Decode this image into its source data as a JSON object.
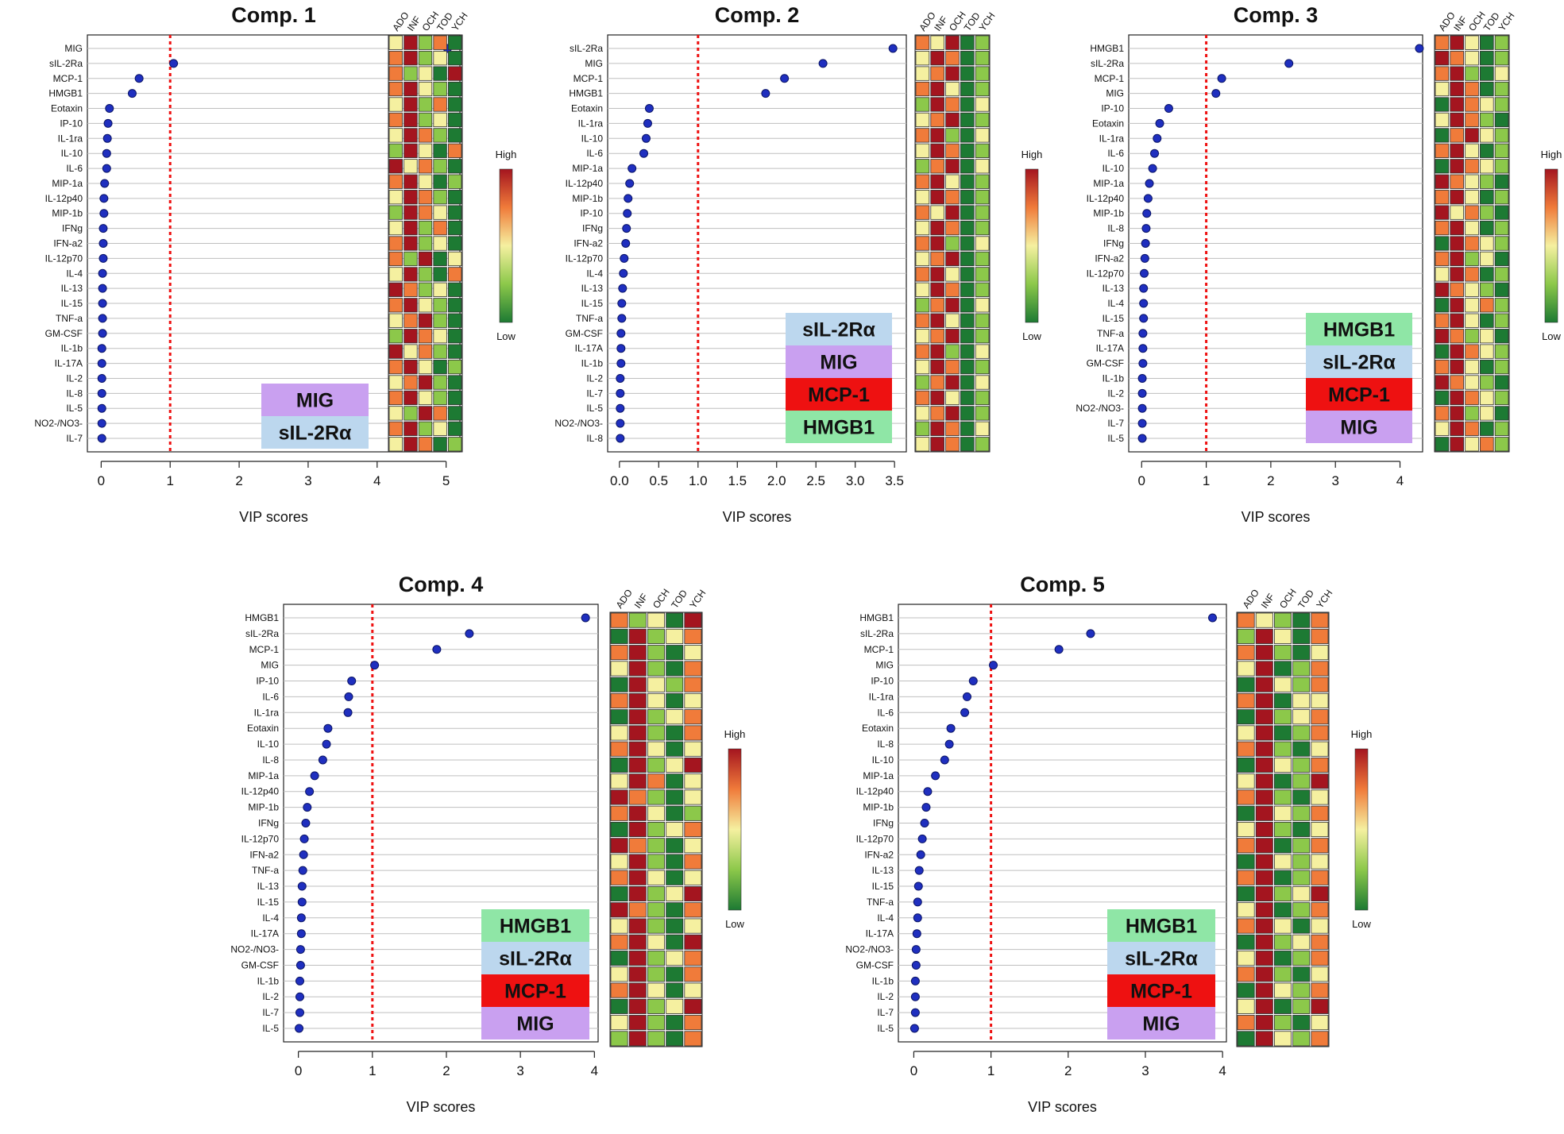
{
  "figure": {
    "xlabel": "VIP scores",
    "heatmap_columns": [
      "ADO",
      "INF",
      "OCH",
      "TOD",
      "YCH"
    ],
    "legend_high": "High",
    "legend_low": "Low",
    "threshold": 1,
    "colors": {
      "dot": "#1f2fbf",
      "threshold_line": "#ee1111",
      "grid": "#bfbfbf",
      "heat": [
        "#1d7a33",
        "#8cc84a",
        "#f5f0a0",
        "#f07b3a",
        "#a4151f"
      ],
      "badge": {
        "MIG": "#c9a0f0",
        "sIL-2Ra": "#bcd7ee",
        "MCP-1": "#ee1111",
        "HMGB1": "#8fe6a6"
      }
    }
  },
  "chart_data": [
    {
      "type": "scatter",
      "title": "Comp. 1",
      "xlabel": "VIP scores",
      "xlim": [
        -0.2,
        5.2
      ],
      "xticks": [
        "0",
        "1",
        "2",
        "3",
        "4",
        "5"
      ],
      "xtick_values": [
        0,
        1,
        2,
        3,
        4,
        5
      ],
      "threshold": 1,
      "labels": [
        "MIG",
        "sIL-2Ra",
        "MCP-1",
        "HMGB1",
        "Eotaxin",
        "IP-10",
        "IL-1ra",
        "IL-10",
        "IL-6",
        "MIP-1a",
        "IL-12p40",
        "MIP-1b",
        "IFNg",
        "IFN-a2",
        "IL-12p70",
        "IL-4",
        "IL-13",
        "IL-15",
        "TNF-a",
        "GM-CSF",
        "IL-1b",
        "IL-17A",
        "IL-2",
        "IL-8",
        "IL-5",
        "NO2-/NO3-",
        "IL-7"
      ],
      "values": [
        5.02,
        1.05,
        0.55,
        0.45,
        0.12,
        0.1,
        0.09,
        0.08,
        0.08,
        0.05,
        0.04,
        0.04,
        0.03,
        0.03,
        0.03,
        0.02,
        0.02,
        0.02,
        0.02,
        0.02,
        0.01,
        0.01,
        0.01,
        0.01,
        0.01,
        0.01,
        0.01
      ],
      "heatmap": [
        [
          2,
          4,
          1,
          3,
          0
        ],
        [
          3,
          4,
          1,
          2,
          0
        ],
        [
          3,
          1,
          2,
          0,
          4
        ],
        [
          3,
          4,
          2,
          1,
          0
        ],
        [
          2,
          4,
          1,
          3,
          0
        ],
        [
          3,
          4,
          1,
          2,
          0
        ],
        [
          2,
          4,
          3,
          1,
          0
        ],
        [
          1,
          4,
          2,
          0,
          3
        ],
        [
          4,
          2,
          3,
          1,
          0
        ],
        [
          3,
          4,
          2,
          0,
          1
        ],
        [
          2,
          4,
          3,
          1,
          0
        ],
        [
          1,
          4,
          3,
          2,
          0
        ],
        [
          2,
          4,
          1,
          3,
          0
        ],
        [
          3,
          4,
          1,
          2,
          0
        ],
        [
          3,
          1,
          4,
          0,
          2
        ],
        [
          2,
          4,
          1,
          0,
          3
        ],
        [
          4,
          3,
          1,
          2,
          0
        ],
        [
          3,
          4,
          2,
          1,
          0
        ],
        [
          2,
          3,
          4,
          1,
          0
        ],
        [
          1,
          4,
          3,
          2,
          0
        ],
        [
          4,
          2,
          3,
          1,
          0
        ],
        [
          3,
          4,
          2,
          0,
          1
        ],
        [
          2,
          3,
          4,
          1,
          0
        ],
        [
          3,
          4,
          2,
          1,
          0
        ],
        [
          2,
          1,
          4,
          3,
          0
        ],
        [
          3,
          4,
          1,
          2,
          0
        ],
        [
          2,
          4,
          3,
          0,
          1
        ]
      ],
      "badges": [
        "MIG",
        "sIL-2Rα"
      ]
    },
    {
      "type": "scatter",
      "title": "Comp. 2",
      "xlabel": "VIP scores",
      "xlim": [
        -0.15,
        3.65
      ],
      "xticks": [
        "0.0",
        "0.5",
        "1.0",
        "1.5",
        "2.0",
        "2.5",
        "3.0",
        "3.5"
      ],
      "xtick_values": [
        0,
        0.5,
        1,
        1.5,
        2,
        2.5,
        3,
        3.5
      ],
      "threshold": 1,
      "labels": [
        "sIL-2Ra",
        "MIG",
        "MCP-1",
        "HMGB1",
        "Eotaxin",
        "IL-1ra",
        "IL-10",
        "IL-6",
        "MIP-1a",
        "IL-12p40",
        "MIP-1b",
        "IP-10",
        "IFNg",
        "IFN-a2",
        "IL-12p70",
        "IL-4",
        "IL-13",
        "IL-15",
        "TNF-a",
        "GM-CSF",
        "IL-17A",
        "IL-1b",
        "IL-2",
        "IL-7",
        "IL-5",
        "NO2-/NO3-",
        "IL-8"
      ],
      "values": [
        3.48,
        2.59,
        2.1,
        1.86,
        0.38,
        0.36,
        0.34,
        0.31,
        0.16,
        0.13,
        0.11,
        0.1,
        0.09,
        0.08,
        0.06,
        0.05,
        0.04,
        0.03,
        0.03,
        0.02,
        0.02,
        0.02,
        0.01,
        0.01,
        0.01,
        0.01,
        0.01
      ],
      "heatmap": [
        [
          3,
          2,
          4,
          0,
          1
        ],
        [
          2,
          4,
          3,
          0,
          1
        ],
        [
          2,
          3,
          4,
          0,
          1
        ],
        [
          3,
          4,
          2,
          0,
          1
        ],
        [
          1,
          4,
          3,
          0,
          2
        ],
        [
          2,
          3,
          4,
          0,
          1
        ],
        [
          3,
          4,
          1,
          0,
          2
        ],
        [
          2,
          4,
          3,
          0,
          1
        ],
        [
          1,
          3,
          4,
          0,
          2
        ],
        [
          3,
          4,
          2,
          0,
          1
        ],
        [
          2,
          4,
          3,
          0,
          1
        ],
        [
          3,
          2,
          4,
          0,
          1
        ],
        [
          2,
          4,
          3,
          0,
          1
        ],
        [
          3,
          4,
          1,
          0,
          2
        ],
        [
          2,
          3,
          4,
          0,
          1
        ],
        [
          3,
          4,
          2,
          0,
          1
        ],
        [
          2,
          4,
          3,
          0,
          1
        ],
        [
          1,
          3,
          4,
          0,
          2
        ],
        [
          3,
          4,
          2,
          0,
          1
        ],
        [
          2,
          3,
          4,
          0,
          1
        ],
        [
          3,
          4,
          1,
          0,
          2
        ],
        [
          2,
          4,
          3,
          0,
          1
        ],
        [
          1,
          3,
          4,
          0,
          2
        ],
        [
          3,
          4,
          2,
          0,
          1
        ],
        [
          2,
          3,
          4,
          0,
          1
        ],
        [
          1,
          4,
          3,
          0,
          2
        ],
        [
          2,
          4,
          3,
          0,
          1
        ]
      ],
      "badges": [
        "sIL-2Rα",
        "MIG",
        "MCP-1",
        "HMGB1"
      ]
    },
    {
      "type": "scatter",
      "title": "Comp. 3",
      "xlabel": "VIP scores",
      "xlim": [
        -0.2,
        4.35
      ],
      "xticks": [
        "0",
        "1",
        "2",
        "3",
        "4"
      ],
      "xtick_values": [
        0,
        1,
        2,
        3,
        4
      ],
      "threshold": 1,
      "labels": [
        "HMGB1",
        "sIL-2Ra",
        "MCP-1",
        "MIG",
        "IP-10",
        "Eotaxin",
        "IL-1ra",
        "IL-6",
        "IL-10",
        "MIP-1a",
        "IL-12p40",
        "MIP-1b",
        "IL-8",
        "IFNg",
        "IFN-a2",
        "IL-12p70",
        "IL-13",
        "IL-4",
        "IL-15",
        "TNF-a",
        "IL-17A",
        "GM-CSF",
        "IL-1b",
        "IL-2",
        "NO2-/NO3-",
        "IL-7",
        "IL-5"
      ],
      "values": [
        4.3,
        2.28,
        1.24,
        1.15,
        0.42,
        0.28,
        0.24,
        0.2,
        0.17,
        0.12,
        0.1,
        0.08,
        0.07,
        0.06,
        0.05,
        0.04,
        0.03,
        0.03,
        0.03,
        0.02,
        0.02,
        0.02,
        0.01,
        0.01,
        0.01,
        0.01,
        0.01
      ],
      "heatmap": [
        [
          3,
          4,
          2,
          0,
          1
        ],
        [
          4,
          3,
          2,
          0,
          1
        ],
        [
          3,
          4,
          1,
          0,
          2
        ],
        [
          2,
          4,
          3,
          0,
          1
        ],
        [
          0,
          4,
          3,
          2,
          1
        ],
        [
          2,
          4,
          3,
          1,
          0
        ],
        [
          0,
          3,
          4,
          2,
          1
        ],
        [
          3,
          4,
          2,
          0,
          1
        ],
        [
          0,
          4,
          3,
          2,
          1
        ],
        [
          4,
          3,
          2,
          1,
          0
        ],
        [
          3,
          4,
          2,
          0,
          1
        ],
        [
          4,
          2,
          3,
          1,
          0
        ],
        [
          3,
          4,
          2,
          0,
          1
        ],
        [
          0,
          4,
          3,
          2,
          1
        ],
        [
          3,
          4,
          1,
          2,
          0
        ],
        [
          2,
          4,
          3,
          0,
          1
        ],
        [
          4,
          3,
          2,
          1,
          0
        ],
        [
          0,
          4,
          2,
          3,
          1
        ],
        [
          3,
          4,
          2,
          0,
          1
        ],
        [
          4,
          3,
          1,
          2,
          0
        ],
        [
          0,
          4,
          3,
          2,
          1
        ],
        [
          3,
          4,
          2,
          0,
          1
        ],
        [
          4,
          3,
          2,
          1,
          0
        ],
        [
          0,
          4,
          3,
          2,
          1
        ],
        [
          3,
          4,
          1,
          2,
          0
        ],
        [
          2,
          4,
          3,
          0,
          1
        ],
        [
          0,
          4,
          2,
          3,
          1
        ]
      ],
      "badges": [
        "HMGB1",
        "sIL-2Rα",
        "MCP-1",
        "MIG"
      ]
    },
    {
      "type": "scatter",
      "title": "Comp. 4",
      "xlabel": "VIP scores",
      "xlim": [
        -0.2,
        4.05
      ],
      "xticks": [
        "0",
        "1",
        "2",
        "3",
        "4"
      ],
      "xtick_values": [
        0,
        1,
        2,
        3,
        4
      ],
      "threshold": 1,
      "labels": [
        "HMGB1",
        "sIL-2Ra",
        "MCP-1",
        "MIG",
        "IP-10",
        "IL-6",
        "IL-1ra",
        "Eotaxin",
        "IL-10",
        "IL-8",
        "MIP-1a",
        "IL-12p40",
        "MIP-1b",
        "IFNg",
        "IL-12p70",
        "IFN-a2",
        "TNF-a",
        "IL-13",
        "IL-15",
        "IL-4",
        "IL-17A",
        "NO2-/NO3-",
        "GM-CSF",
        "IL-1b",
        "IL-2",
        "IL-7",
        "IL-5"
      ],
      "values": [
        3.88,
        2.31,
        1.87,
        1.03,
        0.72,
        0.68,
        0.67,
        0.4,
        0.38,
        0.33,
        0.22,
        0.15,
        0.12,
        0.1,
        0.08,
        0.07,
        0.06,
        0.05,
        0.05,
        0.04,
        0.04,
        0.03,
        0.03,
        0.02,
        0.02,
        0.02,
        0.01
      ],
      "heatmap": [
        [
          3,
          1,
          2,
          0,
          4
        ],
        [
          0,
          4,
          1,
          2,
          3
        ],
        [
          3,
          4,
          1,
          0,
          2
        ],
        [
          2,
          4,
          1,
          0,
          3
        ],
        [
          0,
          4,
          2,
          1,
          3
        ],
        [
          3,
          4,
          2,
          0,
          2
        ],
        [
          0,
          4,
          1,
          2,
          3
        ],
        [
          2,
          4,
          1,
          0,
          3
        ],
        [
          3,
          4,
          2,
          0,
          2
        ],
        [
          0,
          4,
          1,
          2,
          4
        ],
        [
          2,
          4,
          3,
          0,
          2
        ],
        [
          4,
          3,
          1,
          0,
          2
        ],
        [
          3,
          4,
          2,
          0,
          1
        ],
        [
          0,
          4,
          1,
          2,
          3
        ],
        [
          4,
          3,
          1,
          0,
          2
        ],
        [
          2,
          4,
          1,
          0,
          3
        ],
        [
          3,
          4,
          2,
          0,
          2
        ],
        [
          0,
          4,
          1,
          2,
          4
        ],
        [
          4,
          3,
          1,
          0,
          3
        ],
        [
          2,
          4,
          1,
          0,
          2
        ],
        [
          3,
          4,
          2,
          0,
          4
        ],
        [
          0,
          4,
          1,
          2,
          3
        ],
        [
          2,
          4,
          1,
          0,
          3
        ],
        [
          3,
          4,
          2,
          0,
          2
        ],
        [
          0,
          4,
          1,
          2,
          4
        ],
        [
          2,
          4,
          1,
          0,
          3
        ],
        [
          1,
          4,
          1,
          0,
          3
        ]
      ],
      "badges": [
        "HMGB1",
        "sIL-2Rα",
        "MCP-1",
        "MIG"
      ]
    },
    {
      "type": "scatter",
      "title": "Comp. 5",
      "xlabel": "VIP scores",
      "xlim": [
        -0.2,
        4.05
      ],
      "xticks": [
        "0",
        "1",
        "2",
        "3",
        "4"
      ],
      "xtick_values": [
        0,
        1,
        2,
        3,
        4
      ],
      "threshold": 1,
      "labels": [
        "HMGB1",
        "sIL-2Ra",
        "MCP-1",
        "MIG",
        "IP-10",
        "IL-1ra",
        "IL-6",
        "Eotaxin",
        "IL-8",
        "IL-10",
        "MIP-1a",
        "IL-12p40",
        "MIP-1b",
        "IFNg",
        "IL-12p70",
        "IFN-a2",
        "IL-13",
        "IL-15",
        "TNF-a",
        "IL-4",
        "IL-17A",
        "NO2-/NO3-",
        "GM-CSF",
        "IL-1b",
        "IL-2",
        "IL-7",
        "IL-5"
      ],
      "values": [
        3.87,
        2.29,
        1.88,
        1.03,
        0.77,
        0.69,
        0.66,
        0.48,
        0.46,
        0.4,
        0.28,
        0.18,
        0.16,
        0.14,
        0.11,
        0.09,
        0.07,
        0.06,
        0.05,
        0.05,
        0.04,
        0.03,
        0.03,
        0.02,
        0.02,
        0.02,
        0.01
      ],
      "heatmap": [
        [
          3,
          2,
          1,
          0,
          3
        ],
        [
          1,
          4,
          2,
          0,
          3
        ],
        [
          3,
          4,
          1,
          0,
          2
        ],
        [
          2,
          4,
          0,
          1,
          3
        ],
        [
          0,
          4,
          2,
          1,
          3
        ],
        [
          3,
          4,
          0,
          2,
          2
        ],
        [
          0,
          4,
          1,
          2,
          3
        ],
        [
          2,
          4,
          0,
          1,
          3
        ],
        [
          3,
          4,
          1,
          0,
          2
        ],
        [
          0,
          4,
          2,
          1,
          3
        ],
        [
          2,
          4,
          0,
          1,
          4
        ],
        [
          3,
          4,
          1,
          0,
          2
        ],
        [
          0,
          4,
          2,
          1,
          3
        ],
        [
          2,
          4,
          1,
          0,
          2
        ],
        [
          3,
          4,
          0,
          1,
          3
        ],
        [
          0,
          4,
          2,
          1,
          2
        ],
        [
          3,
          4,
          0,
          1,
          3
        ],
        [
          0,
          4,
          1,
          2,
          4
        ],
        [
          2,
          4,
          0,
          1,
          3
        ],
        [
          3,
          4,
          2,
          0,
          2
        ],
        [
          0,
          4,
          1,
          2,
          3
        ],
        [
          2,
          4,
          0,
          1,
          3
        ],
        [
          3,
          4,
          1,
          0,
          2
        ],
        [
          0,
          4,
          2,
          1,
          3
        ],
        [
          2,
          4,
          0,
          1,
          4
        ],
        [
          3,
          4,
          1,
          0,
          2
        ],
        [
          0,
          4,
          2,
          1,
          3
        ]
      ],
      "badges": [
        "HMGB1",
        "sIL-2Rα",
        "MCP-1",
        "MIG"
      ]
    }
  ]
}
